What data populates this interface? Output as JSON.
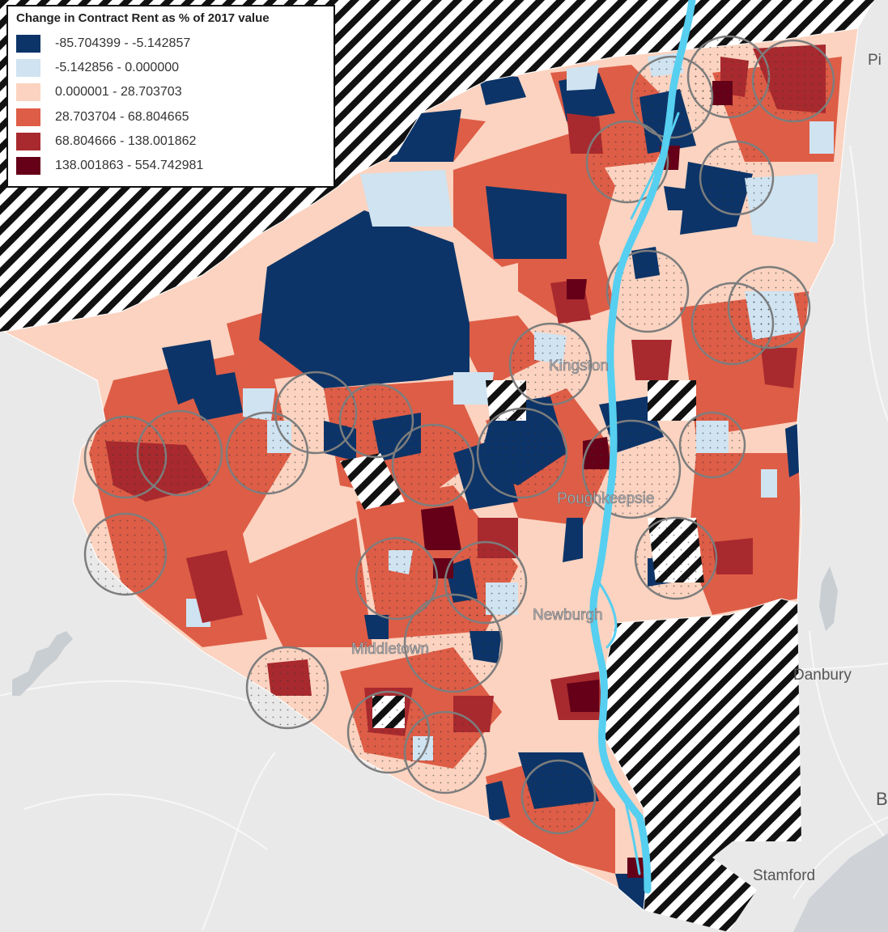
{
  "legend": {
    "title": "Change in Contract Rent as % of 2017 value",
    "classes": [
      {
        "label": "-85.704399 - -5.142857",
        "color": "#0c3468"
      },
      {
        "label": "-5.142856 - 0.000000",
        "color": "#cfe3f1"
      },
      {
        "label": "0.000001 - 28.703703",
        "color": "#fbd3c0"
      },
      {
        "label": "28.703704 - 68.804665",
        "color": "#de5d46"
      },
      {
        "label": "68.804666 - 138.001862",
        "color": "#a82a2e"
      },
      {
        "label": "138.001863 - 554.742981",
        "color": "#650018"
      }
    ]
  },
  "places": {
    "kingston": "Kingston",
    "poughkeepsie": "Poughkeepsie",
    "newburgh": "Newburgh",
    "middletown": "Middletown",
    "danbury": "Danbury",
    "stamford": "Stamford",
    "pi_partial": "Pi",
    "b_partial": "B"
  },
  "colors": {
    "basemap": "#e9e9e9",
    "river": "#56cff0",
    "hatch": "#111111",
    "buffer_outline": "#7d7d7d"
  }
}
